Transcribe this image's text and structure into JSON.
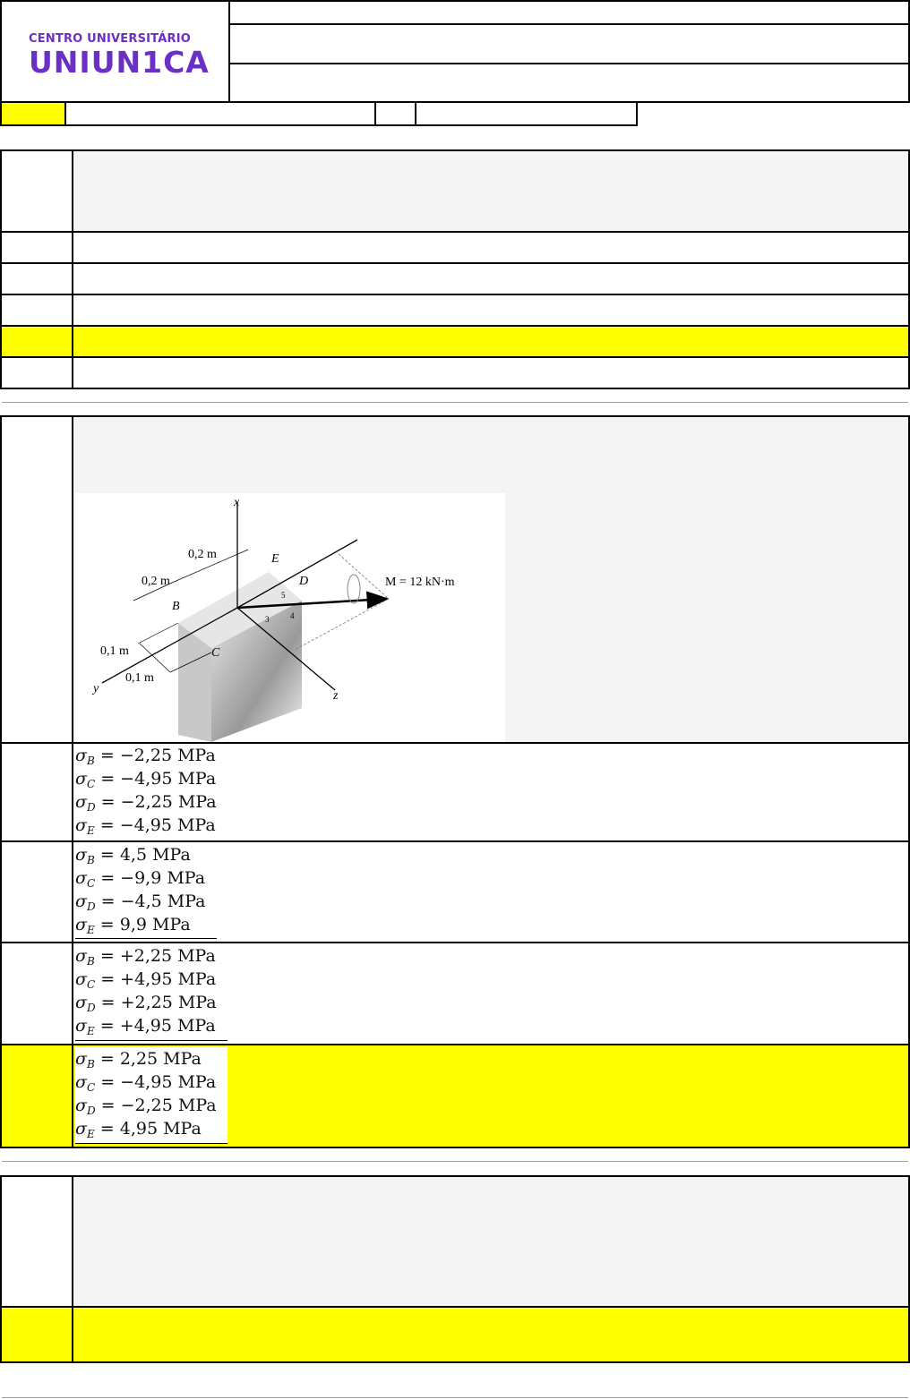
{
  "logo": {
    "line1": "CENTRO UNIVERSITÁRIO",
    "line2": "UNIUN1CA",
    "color": "#6a2fc4"
  },
  "colors": {
    "highlight": "#ffff00",
    "panel": "#f4f4f4"
  },
  "question2": {
    "figure": {
      "axis_x": "x",
      "axis_y": "y",
      "axis_z": "z",
      "dim_top1": "0,2 m",
      "dim_top2": "0,2 m",
      "dim_left1": "0,1 m",
      "dim_left2": "0,1 m",
      "point_b": "B",
      "point_c": "C",
      "point_d": "D",
      "point_e": "E",
      "moment": "M = 12 kN·m",
      "tri_3": "3",
      "tri_4": "4",
      "tri_5": "5"
    },
    "options": [
      {
        "lines": [
          {
            "s": "σ",
            "sub": "B",
            "rhs": "= −2,25 MPa"
          },
          {
            "s": "σ",
            "sub": "C",
            "rhs": "= −4,95 MPa"
          },
          {
            "s": "σ",
            "sub": "D",
            "rhs": "= −2,25 MPa"
          },
          {
            "s": "σ",
            "sub": "E",
            "rhs": "= −4,95 MPa"
          }
        ]
      },
      {
        "lines": [
          {
            "s": "σ",
            "sub": "B",
            "rhs": "= 4,5 MPa"
          },
          {
            "s": "σ",
            "sub": "C",
            "rhs": "= −9,9 MPa"
          },
          {
            "s": "σ",
            "sub": "D",
            "rhs": "= −4,5 MPa"
          },
          {
            "s": "σ",
            "sub": "E",
            "rhs": "= 9,9 MPa"
          }
        ]
      },
      {
        "lines": [
          {
            "s": "σ",
            "sub": "B",
            "rhs": "= +2,25 MPa"
          },
          {
            "s": "σ",
            "sub": "C",
            "rhs": "= +4,95 MPa"
          },
          {
            "s": "σ",
            "sub": "D",
            "rhs": "= +2,25 MPa"
          },
          {
            "s": "σ",
            "sub": "E",
            "rhs": "= +4,95 MPa"
          }
        ]
      },
      {
        "lines": [
          {
            "s": "σ",
            "sub": "B",
            "rhs": "= 2,25 MPa"
          },
          {
            "s": "σ",
            "sub": "C",
            "rhs": "= −4,95 MPa"
          },
          {
            "s": "σ",
            "sub": "D",
            "rhs": "= −2,25 MPa"
          },
          {
            "s": "σ",
            "sub": "E",
            "rhs": "= 4,95 MPa"
          }
        ],
        "highlighted": true
      }
    ]
  }
}
